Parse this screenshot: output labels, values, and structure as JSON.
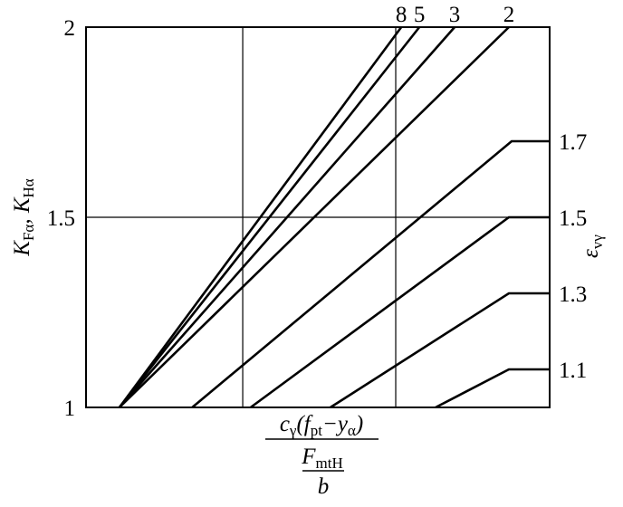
{
  "chart_data": {
    "type": "line",
    "ylabel": [
      "K",
      "Fα",
      ", K",
      "Hα"
    ],
    "xlabel_numerator": [
      "c",
      "γ",
      "(f",
      "pt",
      "−y",
      "α",
      ")"
    ],
    "xlabel_denominator": [
      "F",
      "mtH"
    ],
    "xlabel_divisor": "b",
    "y2label": [
      "ε",
      "vγ"
    ],
    "xlim": [
      0,
      1
    ],
    "xticks": [
      0.338,
      0.668
    ],
    "ylim": [
      1,
      2
    ],
    "yticks": [
      1,
      1.5,
      2
    ],
    "grid": true,
    "series": [
      {
        "name": "8",
        "color": "#000000",
        "x": [
          0.072,
          0.68
        ],
        "values": [
          1,
          2
        ]
      },
      {
        "name": "5",
        "color": "#000000",
        "x": [
          0.072,
          0.719
        ],
        "values": [
          1,
          2
        ]
      },
      {
        "name": "3",
        "color": "#000000",
        "x": [
          0.072,
          0.795
        ],
        "values": [
          1,
          2
        ]
      },
      {
        "name": "2",
        "color": "#000000",
        "x": [
          0.072,
          0.912
        ],
        "values": [
          1,
          2
        ]
      },
      {
        "name": "1.7",
        "color": "#000000",
        "x": [
          0.229,
          0.918,
          1
        ],
        "values": [
          1,
          1.7,
          1.7
        ]
      },
      {
        "name": "1.5",
        "color": "#000000",
        "x": [
          0.355,
          0.912,
          1
        ],
        "values": [
          1,
          1.5,
          1.5
        ]
      },
      {
        "name": "1.3",
        "color": "#000000",
        "x": [
          0.527,
          0.912,
          1
        ],
        "values": [
          1,
          1.3,
          1.3
        ]
      },
      {
        "name": "1.1",
        "color": "#000000",
        "x": [
          0.754,
          0.912,
          1
        ],
        "values": [
          1,
          1.1,
          1.1
        ]
      }
    ]
  }
}
